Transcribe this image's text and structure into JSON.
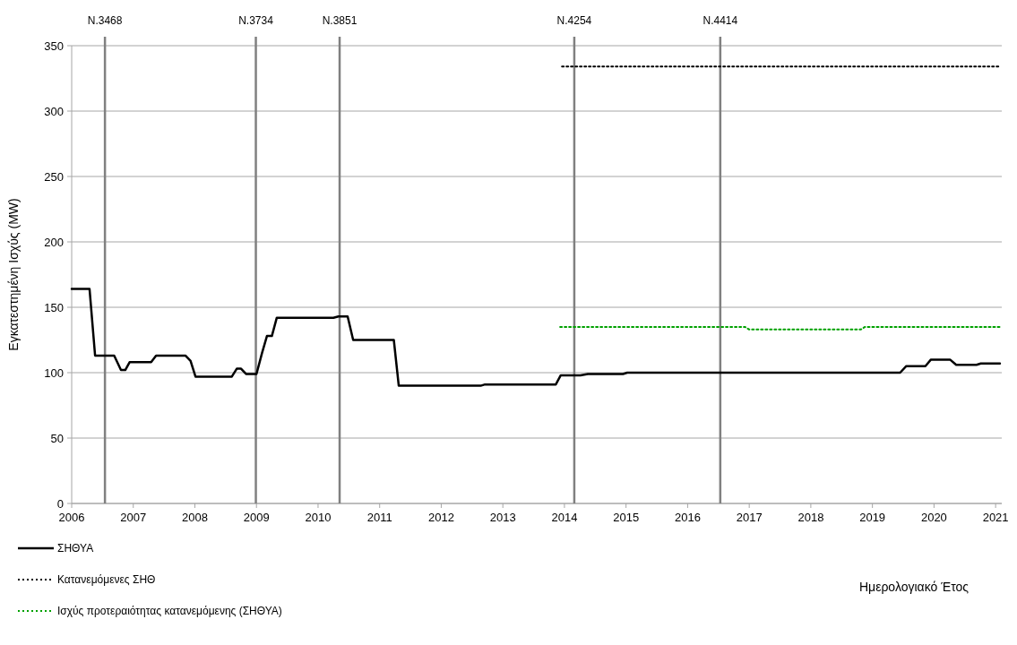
{
  "chart_data": {
    "type": "line",
    "xlabel": "Ημερολογιακό Έτος",
    "ylabel": "Εγκατεστημένη Ισχύς (MW)",
    "xlim": [
      2006,
      2021.1
    ],
    "xticks": [
      2006,
      2007,
      2008,
      2009,
      2010,
      2011,
      2012,
      2013,
      2014,
      2015,
      2016,
      2017,
      2018,
      2019,
      2020,
      2021
    ],
    "ylim": [
      0,
      350
    ],
    "yticks": [
      0,
      50,
      100,
      150,
      200,
      250,
      300,
      350
    ],
    "grid": "y",
    "legend": "bottom left",
    "series": [
      {
        "name": "ΣΗΘΥΑ",
        "color": "#000000",
        "line_style": "solid",
        "x": [
          2006.0,
          2006.29,
          2006.38,
          2006.69,
          2006.8,
          2006.87,
          2006.94,
          2007.29,
          2007.37,
          2007.85,
          2007.93,
          2008.01,
          2008.6,
          2008.68,
          2008.75,
          2008.83,
          2009.0,
          2009.09,
          2009.17,
          2009.25,
          2009.33,
          2010.25,
          2010.33,
          2010.48,
          2010.57,
          2011.23,
          2011.31,
          2012.64,
          2012.71,
          2013.86,
          2013.94,
          2014.26,
          2014.38,
          2014.95,
          2015.02,
          2019.45,
          2019.55,
          2019.86,
          2019.95,
          2020.26,
          2020.36,
          2020.69,
          2020.76,
          2021.07
        ],
        "values": [
          164,
          164,
          113,
          113,
          102,
          102,
          108,
          108,
          113,
          113,
          109,
          97,
          97,
          103,
          103,
          99,
          99,
          115,
          128,
          128,
          142,
          142,
          143,
          143,
          125,
          125,
          90,
          90,
          91,
          91,
          98,
          98,
          99,
          99,
          100,
          100,
          105,
          105,
          110,
          110,
          106,
          106,
          107,
          107
        ]
      },
      {
        "name": "Κατανεμόμενες ΣΗΘ",
        "color": "#000000",
        "line_style": "dotted",
        "x": [
          2013.96,
          2021.07
        ],
        "values": [
          334,
          334
        ]
      },
      {
        "name": "Ισχύς προτεραιότητας κατανεμόμενης (ΣΗΘΥΑ)",
        "color": "#00a000",
        "line_style": "dotted",
        "x": [
          2013.93,
          2016.93,
          2017.0,
          2018.81,
          2018.88,
          2021.07
        ],
        "values": [
          135,
          135,
          133,
          133,
          135,
          135
        ]
      }
    ],
    "ref_lines": [
      {
        "axis": "x",
        "value": 2006.54,
        "label": "N.3468",
        "color": "#808080"
      },
      {
        "axis": "x",
        "value": 2008.99,
        "label": "N.3734",
        "color": "#808080"
      },
      {
        "axis": "x",
        "value": 2010.35,
        "label": "N.3851",
        "color": "#808080"
      },
      {
        "axis": "x",
        "value": 2014.16,
        "label": "N.4254",
        "color": "#808080"
      },
      {
        "axis": "x",
        "value": 2016.53,
        "label": "N.4414",
        "color": "#808080"
      }
    ]
  }
}
